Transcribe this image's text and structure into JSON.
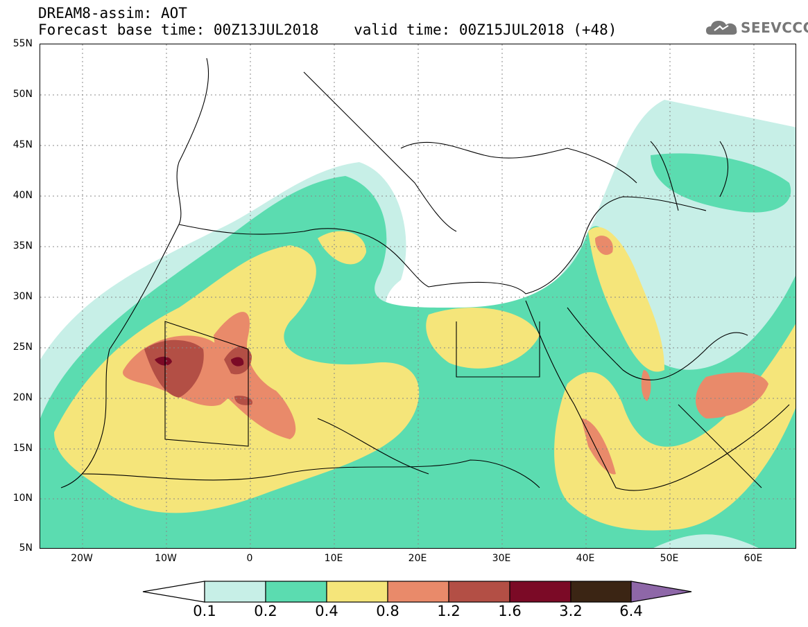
{
  "header": {
    "line1": "DREAM8-assim: AOT",
    "line2": "Forecast base time: 00Z13JUL2018    valid time: 00Z15JUL2018 (+48)"
  },
  "logo": {
    "text": "SEEVCCC",
    "icon": "cloud-icon"
  },
  "map": {
    "lon_range": [
      -25,
      65
    ],
    "lat_range": [
      5,
      55
    ],
    "lat_labels": [
      "55N",
      "50N",
      "45N",
      "40N",
      "35N",
      "30N",
      "25N",
      "20N",
      "15N",
      "10N",
      "5N"
    ],
    "lon_labels": [
      "20W",
      "10W",
      "0",
      "10E",
      "20E",
      "30E",
      "40E",
      "50E",
      "60E"
    ],
    "grid": true
  },
  "legend": {
    "levels": [
      "0.1",
      "0.2",
      "0.4",
      "0.8",
      "1.2",
      "1.6",
      "3.2",
      "6.4"
    ],
    "colors": [
      "#ffffff",
      "#c7efe7",
      "#5bdcb0",
      "#f5e57a",
      "#e98a6a",
      "#b34f45",
      "#7b0a26",
      "#3b2514",
      "#8e67a8"
    ]
  }
}
